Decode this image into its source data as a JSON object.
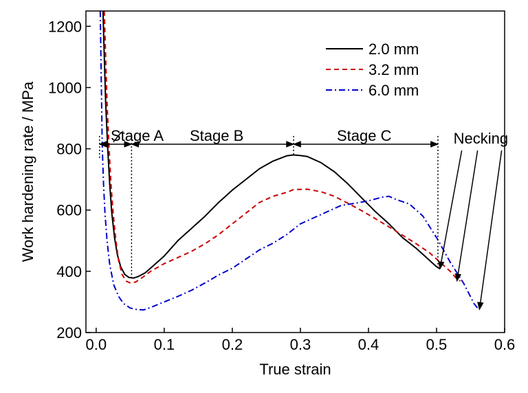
{
  "chart_data": {
    "type": "line",
    "title": "",
    "xlabel": "True strain",
    "ylabel": "Work hardening rate / MPa",
    "xlim": [
      -0.015,
      0.6
    ],
    "ylim": [
      200,
      1250
    ],
    "xticks": [
      0.0,
      0.1,
      0.2,
      0.3,
      0.4,
      0.5,
      0.6
    ],
    "xtick_labels": [
      "0.0",
      "0.1",
      "0.2",
      "0.3",
      "0.4",
      "0.5",
      "0.6"
    ],
    "yticks": [
      200,
      400,
      600,
      800,
      1000,
      1200
    ],
    "ytick_labels": [
      "200",
      "400",
      "600",
      "800",
      "1000",
      "1200"
    ],
    "grid": false,
    "legend_position": "top-right",
    "series": [
      {
        "name": "2.0 mm",
        "color": "#000000",
        "dash": "solid",
        "points": [
          [
            0.01,
            1250
          ],
          [
            0.012,
            1100
          ],
          [
            0.014,
            950
          ],
          [
            0.017,
            800
          ],
          [
            0.02,
            680
          ],
          [
            0.023,
            590
          ],
          [
            0.027,
            510
          ],
          [
            0.031,
            455
          ],
          [
            0.036,
            415
          ],
          [
            0.042,
            390
          ],
          [
            0.048,
            380
          ],
          [
            0.055,
            378
          ],
          [
            0.062,
            383
          ],
          [
            0.072,
            395
          ],
          [
            0.085,
            420
          ],
          [
            0.1,
            450
          ],
          [
            0.12,
            500
          ],
          [
            0.14,
            540
          ],
          [
            0.16,
            580
          ],
          [
            0.18,
            625
          ],
          [
            0.2,
            665
          ],
          [
            0.22,
            700
          ],
          [
            0.24,
            735
          ],
          [
            0.26,
            760
          ],
          [
            0.28,
            777
          ],
          [
            0.29,
            780
          ],
          [
            0.3,
            778
          ],
          [
            0.31,
            775
          ],
          [
            0.33,
            755
          ],
          [
            0.35,
            725
          ],
          [
            0.37,
            685
          ],
          [
            0.39,
            640
          ],
          [
            0.41,
            595
          ],
          [
            0.43,
            555
          ],
          [
            0.45,
            510
          ],
          [
            0.47,
            475
          ],
          [
            0.48,
            455
          ],
          [
            0.49,
            435
          ],
          [
            0.5,
            415
          ],
          [
            0.505,
            408
          ]
        ]
      },
      {
        "name": "3.2 mm",
        "color": "#cc0000",
        "dash": "dashed",
        "points": [
          [
            0.012,
            1250
          ],
          [
            0.014,
            1100
          ],
          [
            0.016,
            950
          ],
          [
            0.019,
            800
          ],
          [
            0.022,
            680
          ],
          [
            0.025,
            590
          ],
          [
            0.029,
            500
          ],
          [
            0.033,
            435
          ],
          [
            0.038,
            390
          ],
          [
            0.044,
            368
          ],
          [
            0.05,
            362
          ],
          [
            0.058,
            365
          ],
          [
            0.068,
            380
          ],
          [
            0.08,
            400
          ],
          [
            0.1,
            425
          ],
          [
            0.12,
            445
          ],
          [
            0.14,
            465
          ],
          [
            0.16,
            490
          ],
          [
            0.18,
            520
          ],
          [
            0.2,
            555
          ],
          [
            0.22,
            590
          ],
          [
            0.24,
            625
          ],
          [
            0.26,
            645
          ],
          [
            0.28,
            658
          ],
          [
            0.29,
            667
          ],
          [
            0.31,
            668
          ],
          [
            0.33,
            660
          ],
          [
            0.35,
            645
          ],
          [
            0.37,
            622
          ],
          [
            0.39,
            598
          ],
          [
            0.41,
            572
          ],
          [
            0.43,
            545
          ],
          [
            0.45,
            518
          ],
          [
            0.47,
            490
          ],
          [
            0.49,
            460
          ],
          [
            0.5,
            440
          ],
          [
            0.51,
            420
          ],
          [
            0.52,
            400
          ],
          [
            0.53,
            375
          ],
          [
            0.535,
            368
          ]
        ]
      },
      {
        "name": "6.0 mm",
        "color": "#0000cc",
        "dash": "dashdot",
        "points": [
          [
            0.006,
            1250
          ],
          [
            0.007,
            1100
          ],
          [
            0.008,
            950
          ],
          [
            0.009,
            800
          ],
          [
            0.011,
            680
          ],
          [
            0.013,
            590
          ],
          [
            0.016,
            500
          ],
          [
            0.02,
            420
          ],
          [
            0.026,
            355
          ],
          [
            0.033,
            318
          ],
          [
            0.04,
            295
          ],
          [
            0.05,
            280
          ],
          [
            0.06,
            275
          ],
          [
            0.07,
            274
          ],
          [
            0.08,
            282
          ],
          [
            0.1,
            300
          ],
          [
            0.12,
            318
          ],
          [
            0.14,
            338
          ],
          [
            0.16,
            362
          ],
          [
            0.18,
            388
          ],
          [
            0.2,
            410
          ],
          [
            0.22,
            440
          ],
          [
            0.24,
            470
          ],
          [
            0.26,
            492
          ],
          [
            0.28,
            520
          ],
          [
            0.3,
            555
          ],
          [
            0.32,
            575
          ],
          [
            0.34,
            595
          ],
          [
            0.36,
            615
          ],
          [
            0.38,
            622
          ],
          [
            0.4,
            630
          ],
          [
            0.42,
            642
          ],
          [
            0.43,
            645
          ],
          [
            0.44,
            635
          ],
          [
            0.46,
            620
          ],
          [
            0.48,
            580
          ],
          [
            0.5,
            510
          ],
          [
            0.52,
            430
          ],
          [
            0.54,
            360
          ],
          [
            0.555,
            295
          ],
          [
            0.562,
            275
          ]
        ]
      }
    ],
    "annotations": {
      "stage_a": "Stage A",
      "stage_b": "Stage B",
      "stage_c": "Stage C",
      "necking": "Necking",
      "stage_boundaries_x": [
        0.005,
        0.052,
        0.29,
        0.502
      ],
      "stage_arrow_y": 815,
      "necking_label_x": 0.535,
      "necking_label_y": 835,
      "necking_points": [
        [
          0.505,
          408
        ],
        [
          0.53,
          368
        ],
        [
          0.563,
          275
        ]
      ]
    }
  }
}
